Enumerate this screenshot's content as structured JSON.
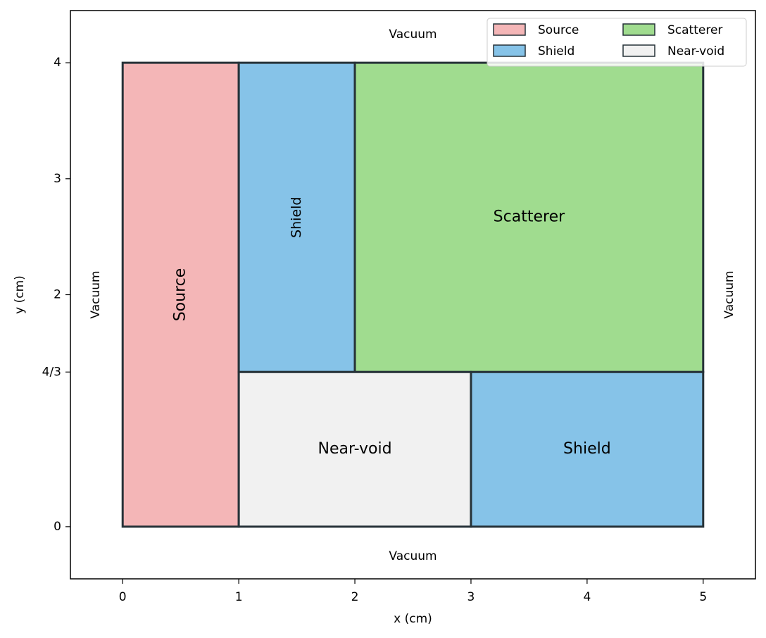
{
  "chart_data": {
    "type": "regions",
    "xlabel": "x (cm)",
    "ylabel": "y (cm)",
    "xlim": [
      -0.45,
      5.45
    ],
    "ylim": [
      -0.45,
      4.45
    ],
    "xticks": [
      0,
      1,
      2,
      3,
      4,
      5
    ],
    "yticks": [
      0,
      {
        "value": 1.333333,
        "label": "4/3"
      },
      2,
      3,
      4
    ],
    "regions": [
      {
        "name": "Source",
        "color": "#f4b6b7",
        "x": [
          0,
          1
        ],
        "y": [
          0,
          4
        ]
      },
      {
        "name": "Shield",
        "color": "#86c3e8",
        "x": [
          1,
          2
        ],
        "y": [
          1.333333,
          4
        ]
      },
      {
        "name": "Scatterer",
        "color": "#a0dc8f",
        "x": [
          2,
          5
        ],
        "y": [
          1.333333,
          4
        ]
      },
      {
        "name": "Near-void",
        "color": "#f1f1f1",
        "x": [
          1,
          3
        ],
        "y": [
          0,
          1.333333
        ]
      },
      {
        "name": "Shield",
        "color": "#86c3e8",
        "x": [
          3,
          5
        ],
        "y": [
          0,
          1.333333
        ]
      }
    ],
    "annotations": [
      "Vacuum",
      "Vacuum",
      "Vacuum",
      "Vacuum"
    ],
    "legend_position": "upper right",
    "legend_columns": 2
  }
}
